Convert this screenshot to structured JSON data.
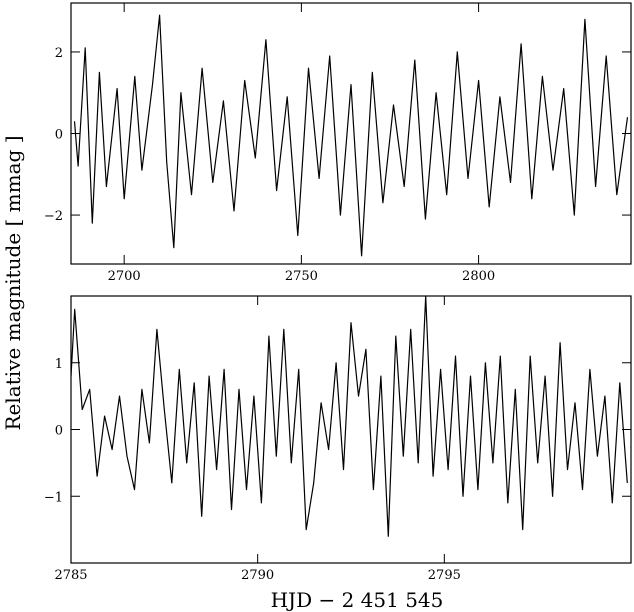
{
  "figure": {
    "ylabel": "Relative magnitude  [ mmag ]",
    "xlabel": "HJD  −  2 451 545"
  },
  "chart_data": [
    {
      "type": "line",
      "panel": "top",
      "xlim": [
        2685,
        2843
      ],
      "ylim": [
        -3.2,
        3.2
      ],
      "xticks": [
        2700,
        2750,
        2800
      ],
      "xtick_labels": [
        "2700",
        "2750",
        "2800"
      ],
      "yticks": [
        -2,
        0,
        2
      ],
      "ytick_labels": [
        "−2",
        "0",
        "2"
      ],
      "grid": false,
      "series": [
        {
          "x": [
            2686,
            2687,
            2689,
            2691,
            2693,
            2695,
            2698,
            2700,
            2703,
            2705,
            2708,
            2710,
            2712,
            2714,
            2716,
            2719,
            2722,
            2725,
            2728,
            2731,
            2734,
            2737,
            2740,
            2743,
            2746,
            2749,
            2752,
            2755,
            2758,
            2761,
            2764,
            2767,
            2770,
            2773,
            2776,
            2779,
            2782,
            2785,
            2788,
            2791,
            2794,
            2797,
            2800,
            2803,
            2806,
            2809,
            2812,
            2815,
            2818,
            2821,
            2824,
            2827,
            2830,
            2833,
            2836,
            2839,
            2842
          ],
          "y": [
            0.3,
            -0.8,
            2.1,
            -2.2,
            1.5,
            -1.3,
            1.1,
            -1.6,
            1.4,
            -0.9,
            1.2,
            2.9,
            -0.7,
            -2.8,
            1.0,
            -1.5,
            1.6,
            -1.2,
            0.8,
            -1.9,
            1.3,
            -0.6,
            2.3,
            -1.4,
            0.9,
            -2.5,
            1.6,
            -1.1,
            1.9,
            -2.0,
            1.2,
            -3.0,
            1.5,
            -1.7,
            0.7,
            -1.3,
            1.8,
            -2.1,
            1.0,
            -1.5,
            2.0,
            -1.1,
            1.3,
            -1.8,
            0.9,
            -1.2,
            2.2,
            -1.6,
            1.4,
            -0.9,
            1.1,
            -2.0,
            2.8,
            -1.3,
            1.9,
            -1.5,
            0.4
          ]
        }
      ]
    },
    {
      "type": "line",
      "panel": "bottom",
      "xlim": [
        2785,
        2800
      ],
      "ylim": [
        -2.0,
        2.0
      ],
      "xticks": [
        2785,
        2790,
        2795
      ],
      "xtick_labels": [
        "2785",
        "2790",
        "2795"
      ],
      "yticks": [
        -1,
        0,
        1
      ],
      "ytick_labels": [
        "−1",
        "0",
        "1"
      ],
      "grid": false,
      "series": [
        {
          "x": [
            2785.0,
            2785.1,
            2785.3,
            2785.5,
            2785.7,
            2785.9,
            2786.1,
            2786.3,
            2786.5,
            2786.7,
            2786.9,
            2787.1,
            2787.3,
            2787.5,
            2787.7,
            2787.9,
            2788.1,
            2788.3,
            2788.5,
            2788.7,
            2788.9,
            2789.1,
            2789.3,
            2789.5,
            2789.7,
            2789.9,
            2790.1,
            2790.3,
            2790.5,
            2790.7,
            2790.9,
            2791.1,
            2791.3,
            2791.5,
            2791.7,
            2791.9,
            2792.1,
            2792.3,
            2792.5,
            2792.7,
            2792.9,
            2793.1,
            2793.3,
            2793.5,
            2793.7,
            2793.9,
            2794.1,
            2794.3,
            2794.5,
            2794.7,
            2794.9,
            2795.1,
            2795.3,
            2795.5,
            2795.7,
            2795.9,
            2796.1,
            2796.3,
            2796.5,
            2796.7,
            2796.9,
            2797.1,
            2797.3,
            2797.5,
            2797.7,
            2797.9,
            2798.1,
            2798.3,
            2798.5,
            2798.7,
            2798.9,
            2799.1,
            2799.3,
            2799.5,
            2799.7,
            2799.9
          ],
          "y": [
            0.8,
            1.8,
            0.3,
            0.6,
            -0.7,
            0.2,
            -0.3,
            0.5,
            -0.4,
            -0.9,
            0.6,
            -0.2,
            1.5,
            0.3,
            -0.8,
            0.9,
            -0.5,
            0.7,
            -1.3,
            0.8,
            -0.6,
            0.9,
            -1.2,
            0.6,
            -0.9,
            0.5,
            -1.1,
            1.4,
            -0.4,
            1.5,
            -0.5,
            0.9,
            -1.5,
            -0.8,
            0.4,
            -0.3,
            1.0,
            -0.6,
            1.6,
            0.5,
            1.2,
            -0.9,
            0.8,
            -1.6,
            1.4,
            -0.4,
            1.5,
            -0.5,
            2.0,
            -0.7,
            0.9,
            -0.6,
            1.1,
            -1.0,
            0.8,
            -0.9,
            1.0,
            -0.5,
            1.1,
            -1.1,
            0.6,
            -1.5,
            1.1,
            -0.5,
            0.8,
            -1.0,
            1.3,
            -0.6,
            0.4,
            -0.9,
            0.9,
            -0.4,
            0.5,
            -1.1,
            0.7,
            -0.8
          ]
        }
      ]
    }
  ]
}
